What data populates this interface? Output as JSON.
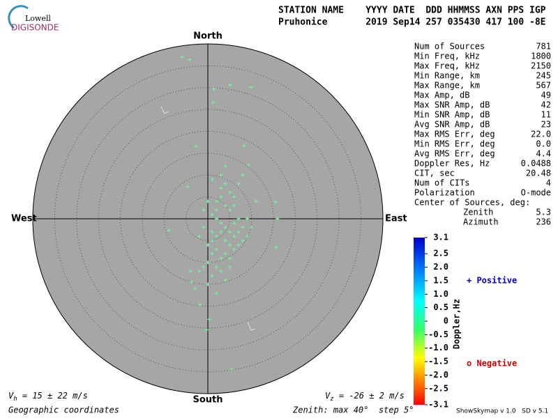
{
  "logo": {
    "top": "Lowell",
    "bottom": "DIGISONDE"
  },
  "header": {
    "labels": "STATION NAME    YYYY DATE  DDD HHMMSS AXN PPS IGP",
    "values": "Pruhonice       2019 Sep14 257 035430 417 100 -8E"
  },
  "stats": [
    [
      "Num of Sources",
      "781"
    ],
    [
      "Min Freq, kHz",
      "1800"
    ],
    [
      "Max Freq, kHz",
      "2150"
    ],
    [
      "Min Range, km",
      "245"
    ],
    [
      "Max Range, km",
      "567"
    ],
    [
      "Max Amp, dB",
      "49"
    ],
    [
      "Max SNR Amp, dB",
      "42"
    ],
    [
      "Min SNR Amp, dB",
      "11"
    ],
    [
      "Avg SNR Amp, dB",
      "23"
    ],
    [
      "Max RMS Err, deg",
      "22.0"
    ],
    [
      "Min RMS Err, deg",
      "0.0"
    ],
    [
      "Avg RMS Err, deg",
      "4.4"
    ],
    [
      "Doppler Res, Hz",
      "0.0488"
    ],
    [
      "CIT, sec",
      "20.48"
    ],
    [
      "Num of CITs",
      "4"
    ],
    [
      "Polarization",
      "O-mode"
    ],
    [
      "Center of Sources, deg:",
      ""
    ]
  ],
  "center": [
    [
      "Zenith",
      "5.3"
    ],
    [
      "Azimuth",
      "236"
    ]
  ],
  "chart_data": {
    "type": "scatter",
    "north": "North",
    "south": "South",
    "west": "West",
    "east": "East",
    "xlim": [
      -40,
      40
    ],
    "ylim": [
      -40,
      40
    ],
    "rticks": [
      5,
      10,
      15,
      20,
      25,
      30,
      35
    ],
    "color": "#66ff99",
    "x": [
      -5.9,
      -4.1,
      1.4,
      1.1,
      5.4,
      -0.2,
      -2.7,
      -4.6,
      -8.9,
      15.6,
      15.9,
      8.3,
      9.3,
      -1.8,
      0.3,
      -3.7,
      15.5,
      5.1,
      9.9,
      2,
      3,
      4,
      5,
      1,
      2,
      3,
      4,
      5,
      6,
      7,
      3,
      2,
      1,
      4,
      5,
      6,
      7,
      8,
      0,
      1,
      2,
      3,
      4,
      5,
      6,
      0,
      -1,
      2,
      3,
      1,
      -2,
      4,
      5,
      7,
      8,
      9,
      2,
      3,
      4,
      5,
      6,
      1,
      3,
      4,
      7,
      8,
      6,
      -1,
      -2,
      0,
      -3,
      2,
      -4,
      9,
      10,
      11,
      -1,
      0,
      1
    ],
    "y": [
      37,
      36.4,
      29.7,
      26.6,
      -34.4,
      -25.4,
      16.6,
      7.3,
      -2.6,
      -6.5,
      0,
      16.7,
      12.3,
      -19.6,
      -23,
      -14.5,
      3.8,
      30.6,
      30.1,
      4,
      5,
      3,
      2,
      1,
      0,
      -1,
      -2,
      -3,
      -1,
      0,
      -3,
      -4,
      -5,
      -5,
      -6,
      -4,
      -3,
      -2,
      -6,
      -8,
      -7,
      -9,
      -8,
      -9,
      -7,
      -10,
      -11,
      -11,
      -12,
      -13,
      -12,
      -14,
      -11,
      -6,
      -5,
      -4,
      2,
      7,
      8,
      6,
      5,
      9,
      10,
      12,
      8,
      10,
      3,
      -2,
      -4,
      -15,
      -16,
      -17,
      -12,
      0,
      -2,
      4,
      2,
      4,
      -3
    ]
  },
  "colorbar": {
    "label": "Doppler,Hz",
    "lim": [
      -3.1,
      3.1
    ],
    "ticks": [
      3.1,
      2.5,
      {
        "value": 2,
        "label": "2.0"
      },
      1.5,
      {
        "value": 1,
        "label": "1.0"
      },
      0.5,
      0,
      -0.5,
      {
        "value": -1,
        "label": "-1.0"
      },
      -1.5,
      {
        "value": -2,
        "label": "-2.0"
      },
      -2.5,
      -3.1
    ],
    "positive": "+ Positive",
    "negative": "o Negative"
  },
  "footer": {
    "vh": {
      "symbol": "V",
      "sub": "h",
      "text": " = 15 ± 22 m/s"
    },
    "vz": {
      "symbol": "V",
      "sub": "z",
      "text": " = -26 ± 2 m/s"
    },
    "coords": "Geographic coordinates",
    "zenith": "Zenith: max 40°  step 5°",
    "version": "ShowSkymap v 1.0   SD v 5.1"
  }
}
